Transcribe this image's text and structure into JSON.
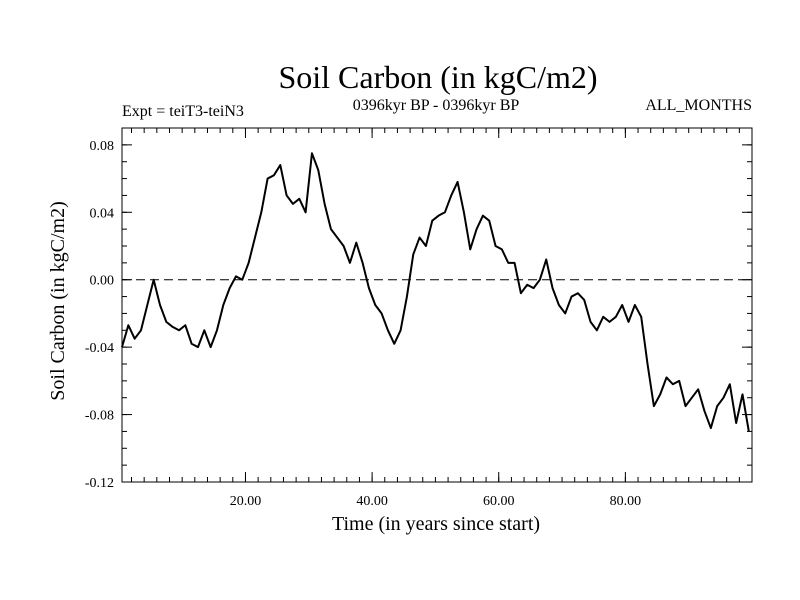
{
  "chart_data": {
    "type": "line",
    "title": "Soil Carbon (in kgC/m2)",
    "subtitle_left": "Expt = teiT3-teiN3",
    "subtitle_center": "0396kyr BP - 0396kyr BP",
    "subtitle_right": "ALL_MONTHS",
    "xlabel": "Time (in years since start)",
    "ylabel": "Soil Carbon (in kgC/m2)",
    "xlim": [
      0.5,
      100
    ],
    "ylim": [
      -0.12,
      0.09
    ],
    "xticks": [
      20,
      40,
      60,
      80
    ],
    "xtick_labels": [
      "20.00",
      "40.00",
      "60.00",
      "80.00"
    ],
    "yticks": [
      -0.12,
      -0.08,
      -0.04,
      0.0,
      0.04,
      0.08
    ],
    "ytick_labels": [
      "-0.12",
      "-0.08",
      "-0.04",
      "0.00",
      "0.04",
      "0.08"
    ],
    "reference_line": 0.0,
    "series": [
      {
        "name": "teiT3-teiN3",
        "x": [
          0.5,
          1.5,
          2.5,
          3.5,
          4.5,
          5.5,
          6.5,
          7.5,
          8.5,
          9.5,
          10.5,
          11.5,
          12.5,
          13.5,
          14.5,
          15.5,
          16.5,
          17.5,
          18.5,
          19.5,
          20.5,
          21.5,
          22.5,
          23.5,
          24.5,
          25.5,
          26.5,
          27.5,
          28.5,
          29.5,
          30.5,
          31.5,
          32.5,
          33.5,
          34.5,
          35.5,
          36.5,
          37.5,
          38.5,
          39.5,
          40.5,
          41.5,
          42.5,
          43.5,
          44.5,
          45.5,
          46.5,
          47.5,
          48.5,
          49.5,
          50.5,
          51.5,
          52.5,
          53.5,
          54.5,
          55.5,
          56.5,
          57.5,
          58.5,
          59.5,
          60.5,
          61.5,
          62.5,
          63.5,
          64.5,
          65.5,
          66.5,
          67.5,
          68.5,
          69.5,
          70.5,
          71.5,
          72.5,
          73.5,
          74.5,
          75.5,
          76.5,
          77.5,
          78.5,
          79.5,
          80.5,
          81.5,
          82.5,
          83.5,
          84.5,
          85.5,
          86.5,
          87.5,
          88.5,
          89.5,
          90.5,
          91.5,
          92.5,
          93.5,
          94.5,
          95.5,
          96.5,
          97.5,
          98.5,
          99.5
        ],
        "values": [
          -0.04,
          -0.027,
          -0.035,
          -0.03,
          -0.015,
          0.0,
          -0.015,
          -0.025,
          -0.028,
          -0.03,
          -0.027,
          -0.038,
          -0.04,
          -0.03,
          -0.04,
          -0.03,
          -0.015,
          -0.005,
          0.002,
          0.0,
          0.01,
          0.025,
          0.04,
          0.06,
          0.062,
          0.068,
          0.05,
          0.045,
          0.048,
          0.04,
          0.075,
          0.065,
          0.045,
          0.03,
          0.025,
          0.02,
          0.01,
          0.022,
          0.01,
          -0.005,
          -0.015,
          -0.02,
          -0.03,
          -0.038,
          -0.03,
          -0.01,
          0.015,
          0.025,
          0.02,
          0.035,
          0.038,
          0.04,
          0.05,
          0.058,
          0.04,
          0.018,
          0.03,
          0.038,
          0.035,
          0.02,
          0.018,
          0.01,
          0.01,
          -0.008,
          -0.003,
          -0.005,
          0.0,
          0.012,
          -0.005,
          -0.015,
          -0.02,
          -0.01,
          -0.008,
          -0.012,
          -0.025,
          -0.03,
          -0.022,
          -0.025,
          -0.022,
          -0.015,
          -0.025,
          -0.015,
          -0.022,
          -0.05,
          -0.075,
          -0.068,
          -0.058,
          -0.062,
          -0.06,
          -0.075,
          -0.07,
          -0.065,
          -0.078,
          -0.088,
          -0.075,
          -0.07,
          -0.062,
          -0.085,
          -0.068,
          -0.09
        ]
      }
    ]
  }
}
